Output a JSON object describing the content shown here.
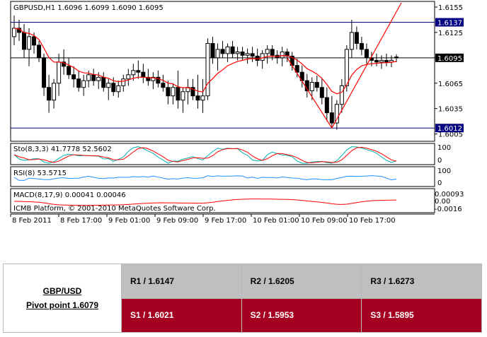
{
  "chart_data": {
    "type": "candlestick",
    "symbol_header": "GBPUSD,H1  1.6096 1.6099 1.6090 1.6095",
    "price_axis": {
      "ticks": [
        "1.6155",
        "1.6125",
        "1.6095",
        "1.6065",
        "1.6035",
        "1.6005"
      ],
      "range": [
        1.5998,
        1.616
      ],
      "hlines": [
        {
          "label": "1.6137",
          "value": 1.6137,
          "color": "#000080",
          "highlight": true
        },
        {
          "label": "1.6012",
          "value": 1.6012,
          "color": "#000080",
          "highlight": true
        },
        {
          "label": "1.6095",
          "value": 1.6095,
          "color": "#000000",
          "highlight": false
        }
      ]
    },
    "time_labels": [
      "8 Feb 2011",
      "8 Feb 17:00",
      "9 Feb 01:00",
      "9 Feb 09:00",
      "9 Feb 17:00",
      "10 Feb 01:00",
      "10 Feb 09:00",
      "10 Feb 17:00"
    ],
    "candles": [
      [
        1.612,
        1.6145,
        1.611,
        1.613
      ],
      [
        1.613,
        1.614,
        1.6115,
        1.6125
      ],
      [
        1.6125,
        1.6135,
        1.6095,
        1.6105
      ],
      [
        1.6105,
        1.613,
        1.6085,
        1.612
      ],
      [
        1.612,
        1.6125,
        1.61,
        1.611
      ],
      [
        1.611,
        1.6115,
        1.609,
        1.6095
      ],
      [
        1.6095,
        1.61,
        1.605,
        1.606
      ],
      [
        1.606,
        1.6075,
        1.603,
        1.6045
      ],
      [
        1.6045,
        1.607,
        1.6035,
        1.6065
      ],
      [
        1.6065,
        1.61,
        1.605,
        1.609
      ],
      [
        1.609,
        1.6105,
        1.6075,
        1.6085
      ],
      [
        1.6085,
        1.6095,
        1.607,
        1.6075
      ],
      [
        1.6075,
        1.6085,
        1.606,
        1.607
      ],
      [
        1.607,
        1.608,
        1.6055,
        1.606
      ],
      [
        1.606,
        1.6075,
        1.605,
        1.6068
      ],
      [
        1.6068,
        1.608,
        1.606,
        1.6075
      ],
      [
        1.6075,
        1.6082,
        1.6062,
        1.6068
      ],
      [
        1.6068,
        1.6078,
        1.6058,
        1.6072
      ],
      [
        1.6072,
        1.6078,
        1.6055,
        1.606
      ],
      [
        1.606,
        1.607,
        1.6045,
        1.6065
      ],
      [
        1.6065,
        1.6072,
        1.605,
        1.6055
      ],
      [
        1.6055,
        1.6068,
        1.6048,
        1.6062
      ],
      [
        1.6062,
        1.6075,
        1.6055,
        1.607
      ],
      [
        1.607,
        1.6082,
        1.6062,
        1.6075
      ],
      [
        1.6075,
        1.6088,
        1.6068,
        1.608
      ],
      [
        1.608,
        1.6092,
        1.607,
        1.6078
      ],
      [
        1.6078,
        1.6088,
        1.6065,
        1.6072
      ],
      [
        1.6072,
        1.6082,
        1.6062,
        1.6068
      ],
      [
        1.6068,
        1.6078,
        1.6058,
        1.6072
      ],
      [
        1.6072,
        1.608,
        1.606,
        1.6065
      ],
      [
        1.6065,
        1.6075,
        1.6055,
        1.606
      ],
      [
        1.606,
        1.6068,
        1.604,
        1.605
      ],
      [
        1.605,
        1.6065,
        1.604,
        1.606
      ],
      [
        1.606,
        1.608,
        1.6035,
        1.6045
      ],
      [
        1.6045,
        1.606,
        1.603,
        1.6055
      ],
      [
        1.6055,
        1.607,
        1.604,
        1.606
      ],
      [
        1.606,
        1.607,
        1.6045,
        1.605
      ],
      [
        1.605,
        1.6075,
        1.6035,
        1.6045
      ],
      [
        1.6045,
        1.607,
        1.603,
        1.605
      ],
      [
        1.605,
        1.6118,
        1.6045,
        1.6112
      ],
      [
        1.6112,
        1.612,
        1.6088,
        1.6095
      ],
      [
        1.6095,
        1.6112,
        1.608,
        1.6105
      ],
      [
        1.6105,
        1.6115,
        1.6095,
        1.61
      ],
      [
        1.61,
        1.6112,
        1.609,
        1.6108
      ],
      [
        1.6108,
        1.6115,
        1.6095,
        1.61
      ],
      [
        1.61,
        1.6108,
        1.6092,
        1.6102
      ],
      [
        1.6102,
        1.6108,
        1.6092,
        1.6098
      ],
      [
        1.6098,
        1.6106,
        1.6088,
        1.61
      ],
      [
        1.61,
        1.6108,
        1.609,
        1.6097
      ],
      [
        1.6097,
        1.6106,
        1.6085,
        1.6092
      ],
      [
        1.6092,
        1.6104,
        1.6082,
        1.61
      ],
      [
        1.61,
        1.611,
        1.6088,
        1.6105
      ],
      [
        1.6105,
        1.611,
        1.6092,
        1.6098
      ],
      [
        1.6098,
        1.6104,
        1.6088,
        1.6095
      ],
      [
        1.6095,
        1.6108,
        1.6085,
        1.6102
      ],
      [
        1.6102,
        1.6106,
        1.609,
        1.6097
      ],
      [
        1.6097,
        1.6102,
        1.608,
        1.6086
      ],
      [
        1.6086,
        1.6094,
        1.6072,
        1.6078
      ],
      [
        1.6078,
        1.6086,
        1.606,
        1.6068
      ],
      [
        1.6068,
        1.6076,
        1.6048,
        1.6056
      ],
      [
        1.6056,
        1.6072,
        1.6045,
        1.6066
      ],
      [
        1.6066,
        1.6074,
        1.6055,
        1.606
      ],
      [
        1.606,
        1.607,
        1.604,
        1.6048
      ],
      [
        1.6048,
        1.606,
        1.602,
        1.603
      ],
      [
        1.603,
        1.605,
        1.6012,
        1.6018
      ],
      [
        1.6018,
        1.6045,
        1.601,
        1.604
      ],
      [
        1.604,
        1.607,
        1.603,
        1.6062
      ],
      [
        1.6062,
        1.611,
        1.6055,
        1.6105
      ],
      [
        1.6105,
        1.614,
        1.6095,
        1.6125
      ],
      [
        1.6125,
        1.6132,
        1.6105,
        1.6112
      ],
      [
        1.6112,
        1.612,
        1.6098,
        1.6105
      ],
      [
        1.6105,
        1.6112,
        1.6088,
        1.6095
      ],
      [
        1.6095,
        1.6102,
        1.6085,
        1.6092
      ],
      [
        1.6092,
        1.61,
        1.6085,
        1.609
      ],
      [
        1.609,
        1.6098,
        1.6082,
        1.6092
      ],
      [
        1.6092,
        1.61,
        1.6085,
        1.609
      ],
      [
        1.609,
        1.6098,
        1.6084,
        1.6092
      ],
      [
        1.6096,
        1.6099,
        1.609,
        1.6095
      ]
    ],
    "ma": {
      "color": "#ff0000"
    },
    "trendlines": [
      {
        "from": [
          55,
          1.6095
        ],
        "to": [
          64,
          1.6012
        ],
        "color": "#ff0000"
      },
      {
        "from": [
          64,
          1.6012
        ],
        "to": [
          78,
          1.616
        ],
        "color": "#ff0000"
      }
    ],
    "indicators": [
      {
        "name": "Stochastic",
        "label": "Sto(8,3,3) 41.7778 52.5602",
        "ticks": [
          "100",
          "0"
        ],
        "lines": [
          "#00b0b0",
          "#ff0000"
        ]
      },
      {
        "name": "RSI",
        "label": "RSI(8) 53.5715",
        "ticks": [
          "100",
          "0"
        ],
        "lines": [
          "#1e90ff"
        ]
      },
      {
        "name": "MACD",
        "label": "MACD(8,17,9) 0.00041 0.00046",
        "ticks": [
          "0.00093",
          "0.00",
          "-0.0016"
        ],
        "lines": [
          "#ff0000"
        ]
      }
    ],
    "watermark": "ICMB Platform, © 2001-2010 MetaQuotes Software Corp."
  },
  "pivot": {
    "pair": "GBP/USD",
    "pivot_label": "Pivot point 1.6079",
    "r1": "R1 / 1.6147",
    "r2": "R2 / 1.6205",
    "r3": "R3 / 1.6273",
    "s1": "S1 / 1.6021",
    "s2": "S2 / 1.5953",
    "s3": "S3 / 1.5895",
    "colors": {
      "resistance": "#bfbfbf",
      "support": "#a50021"
    }
  }
}
